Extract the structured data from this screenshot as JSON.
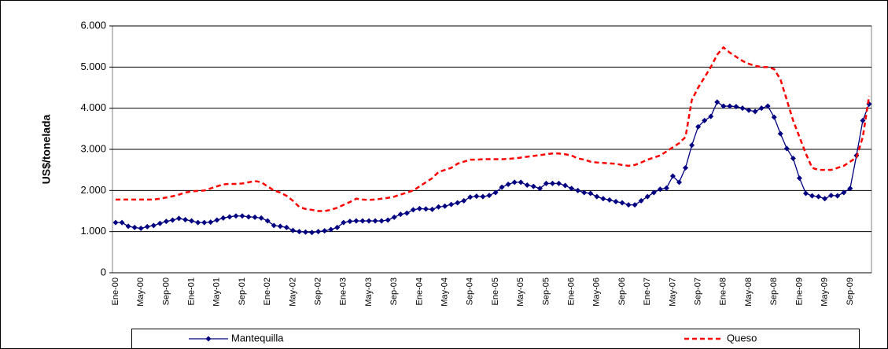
{
  "chart_data": {
    "type": "line",
    "y_label": "US$/tonelada",
    "categories": [
      "Ene-00",
      null,
      null,
      null,
      "May-00",
      null,
      null,
      null,
      "Sep-00",
      null,
      null,
      null,
      "Ene-01",
      null,
      null,
      null,
      "May-01",
      null,
      null,
      null,
      "Sep-01",
      null,
      null,
      null,
      "Ene-02",
      null,
      null,
      null,
      "May-02",
      null,
      null,
      null,
      "Sep-02",
      null,
      null,
      null,
      "Ene-03",
      null,
      null,
      null,
      "May-03",
      null,
      null,
      null,
      "Sep-03",
      null,
      null,
      null,
      "Ene-04",
      null,
      null,
      null,
      "May-04",
      null,
      null,
      null,
      "Sep-04",
      null,
      null,
      null,
      "Ene-05",
      null,
      null,
      null,
      "May-05",
      null,
      null,
      null,
      "Sep-05",
      null,
      null,
      null,
      "Ene-06",
      null,
      null,
      null,
      "May-06",
      null,
      null,
      null,
      "Sep-06",
      null,
      null,
      null,
      "Ene-07",
      null,
      null,
      null,
      "May-07",
      null,
      null,
      null,
      "Sep-07",
      null,
      null,
      null,
      "Ene-08",
      null,
      null,
      null,
      "May-08",
      null,
      null,
      null,
      "Sep-08",
      null,
      null,
      null,
      "Ene-09",
      null,
      null,
      null,
      "May-09",
      null,
      null,
      null,
      "Sep-09",
      null,
      null,
      null
    ],
    "series": [
      {
        "name": "Mantequilla",
        "color": "#000080",
        "marker": "diamond",
        "dash": false,
        "values": [
          1220,
          1220,
          1130,
          1100,
          1080,
          1120,
          1150,
          1200,
          1250,
          1280,
          1320,
          1290,
          1260,
          1220,
          1220,
          1230,
          1280,
          1330,
          1360,
          1380,
          1380,
          1360,
          1350,
          1330,
          1260,
          1150,
          1130,
          1100,
          1030,
          1000,
          990,
          980,
          1000,
          1020,
          1050,
          1100,
          1220,
          1250,
          1260,
          1260,
          1260,
          1260,
          1260,
          1280,
          1350,
          1420,
          1450,
          1530,
          1560,
          1550,
          1540,
          1600,
          1620,
          1660,
          1700,
          1750,
          1840,
          1860,
          1850,
          1880,
          1950,
          2080,
          2150,
          2200,
          2200,
          2130,
          2100,
          2050,
          2170,
          2170,
          2170,
          2120,
          2050,
          2000,
          1950,
          1930,
          1850,
          1800,
          1770,
          1730,
          1700,
          1650,
          1650,
          1750,
          1850,
          1950,
          2030,
          2060,
          2350,
          2200,
          2550,
          3100,
          3550,
          3700,
          3800,
          4150,
          4050,
          4050,
          4040,
          4000,
          3950,
          3920,
          4000,
          4050,
          3780,
          3380,
          3020,
          2780,
          2300,
          1930,
          1870,
          1850,
          1800,
          1880,
          1870,
          1950,
          2050,
          2850,
          3700,
          4100
        ]
      },
      {
        "name": "Queso",
        "color": "#ff0000",
        "marker": "none",
        "dash": true,
        "values": [
          1780,
          1780,
          1780,
          1780,
          1780,
          1780,
          1780,
          1800,
          1830,
          1860,
          1900,
          1950,
          1980,
          1990,
          2000,
          2050,
          2100,
          2150,
          2160,
          2160,
          2170,
          2200,
          2230,
          2200,
          2100,
          2000,
          1950,
          1870,
          1750,
          1600,
          1550,
          1530,
          1500,
          1500,
          1530,
          1580,
          1650,
          1720,
          1800,
          1780,
          1770,
          1780,
          1800,
          1820,
          1850,
          1900,
          1950,
          2000,
          2100,
          2200,
          2300,
          2450,
          2500,
          2550,
          2650,
          2700,
          2750,
          2750,
          2760,
          2760,
          2760,
          2760,
          2770,
          2780,
          2800,
          2820,
          2840,
          2860,
          2880,
          2900,
          2900,
          2880,
          2850,
          2780,
          2750,
          2700,
          2680,
          2670,
          2660,
          2650,
          2620,
          2600,
          2620,
          2680,
          2750,
          2800,
          2850,
          2950,
          3050,
          3150,
          3300,
          4200,
          4500,
          4750,
          5000,
          5300,
          5480,
          5350,
          5250,
          5150,
          5080,
          5030,
          5000,
          5000,
          4950,
          4700,
          4200,
          3700,
          3300,
          2900,
          2550,
          2500,
          2500,
          2500,
          2550,
          2600,
          2700,
          2800,
          3300,
          4300
        ]
      }
    ],
    "ylim": [
      0,
      6000
    ],
    "yticks": [
      0,
      {
        "value": 1000,
        "label": "1.000"
      },
      {
        "value": 2000,
        "label": "2.000"
      },
      {
        "value": 3000,
        "label": "3.000"
      },
      {
        "value": 4000,
        "label": "4.000"
      },
      {
        "value": 5000,
        "label": "5.000"
      },
      {
        "value": 6000,
        "label": "6.000"
      }
    ],
    "grid": true,
    "legend": "bottom"
  }
}
